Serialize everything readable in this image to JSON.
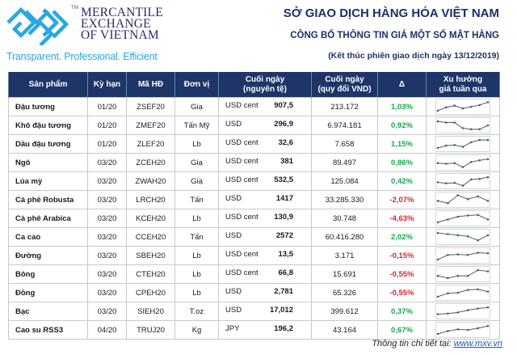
{
  "header": {
    "brand_lines": [
      "MERCANTILE",
      "EXCHANGE",
      "OF VIETNAM"
    ],
    "trademark": "TM",
    "tagline": "Transparent. Professional. Efficient",
    "title": "SỞ GIAO DỊCH HÀNG HÓA VIỆT NAM",
    "subtitle": "CÔNG BỐ THÔNG TIN GIÁ MỘT SỐ MẶT HÀNG",
    "session": "(Kết thúc phiên giao dịch ngày 13/12/2019)"
  },
  "colors": {
    "header_bg": "#1e3567",
    "positive": "#19a64b",
    "negative": "#d9262a",
    "brand_blue": "#2aa7df",
    "sparkline": "#4a5f73"
  },
  "table": {
    "columns": [
      "Sản phẩm",
      "Kỳ hạn",
      "Mã HĐ",
      "Đơn vị",
      "Cuối ngày\n(nguyên tệ)",
      "Cuối ngày\n(quy đổi VND)",
      "Δ",
      "Xu hướng\ngiá tuần qua"
    ],
    "col_lines": {
      "c4a": "Cuối ngày",
      "c4b": "(nguyên tệ)",
      "c5a": "Cuối ngày",
      "c5b": "(quy đổi VND)",
      "c7a": "Xu hướng",
      "c7b": "giá tuần qua"
    },
    "rows": [
      {
        "product": "Đậu tương",
        "term": "01/20",
        "code": "ZSEF20",
        "unit": "Giạ",
        "currency": "USD cent",
        "price": "907,5",
        "vnd": "213.172",
        "change": "1,03%",
        "dir": "pos",
        "trend": [
          0.85,
          0.55,
          0.4,
          0.65,
          0.5,
          0.35,
          0.1
        ]
      },
      {
        "product": "Khô đậu tương",
        "term": "01/20",
        "code": "ZMEF20",
        "unit": "Tấn Mỹ",
        "currency": "USD",
        "price": "296,9",
        "vnd": "6.974.181",
        "change": "0,92%",
        "dir": "pos",
        "trend": [
          0.15,
          0.25,
          0.25,
          0.75,
          0.85,
          0.85,
          0.5
        ]
      },
      {
        "product": "Dầu đậu tương",
        "term": "01/20",
        "code": "ZLEF20",
        "unit": "Lb",
        "currency": "USD cent",
        "price": "32,6",
        "vnd": "7.658",
        "change": "1,15%",
        "dir": "pos",
        "trend": [
          0.85,
          0.65,
          0.6,
          0.75,
          0.35,
          0.15,
          0.15
        ]
      },
      {
        "product": "Ngô",
        "term": "03/20",
        "code": "ZCEH20",
        "unit": "Giạ",
        "currency": "USD cent",
        "price": "381",
        "vnd": "89.497",
        "change": "0,86%",
        "dir": "pos",
        "trend": [
          0.55,
          0.6,
          0.55,
          0.9,
          0.45,
          0.3,
          0.2
        ]
      },
      {
        "product": "Lúa mỳ",
        "term": "03/20",
        "code": "ZWAH20",
        "unit": "Giạ",
        "currency": "USD cent",
        "price": "532,5",
        "vnd": "125.084",
        "change": "0,42%",
        "dir": "pos",
        "trend": [
          0.6,
          0.7,
          0.65,
          0.9,
          0.35,
          0.3,
          0.15
        ]
      },
      {
        "product": "Cà phê Robusta",
        "term": "03/20",
        "code": "LRCH20",
        "unit": "Tấn",
        "currency": "USD",
        "price": "1417",
        "vnd": "33.285.330",
        "change": "-2,07%",
        "dir": "neg",
        "trend": [
          0.6,
          0.8,
          0.1,
          0.45,
          0.2,
          0.6
        ]
      },
      {
        "product": "Cà phê Arabica",
        "term": "03/20",
        "code": "KCEH20",
        "unit": "Lb",
        "currency": "USD cent",
        "price": "130,9",
        "vnd": "30.748",
        "change": "-4,63%",
        "dir": "neg",
        "trend": [
          0.85,
          0.6,
          0.35,
          0.25,
          0.2,
          0.6
        ]
      },
      {
        "product": "Ca cao",
        "term": "03/20",
        "code": "CCEH20",
        "unit": "Tấn",
        "currency": "USD",
        "price": "2572",
        "vnd": "60.416.280",
        "change": "2,02%",
        "dir": "pos",
        "trend": [
          0.15,
          0.25,
          0.35,
          0.45,
          0.8,
          0.35
        ]
      },
      {
        "product": "Đường",
        "term": "03/20",
        "code": "SBEH20",
        "unit": "Lb",
        "currency": "USD cent",
        "price": "13,5",
        "vnd": "3.171",
        "change": "-0,15%",
        "dir": "neg",
        "trend": [
          0.85,
          0.45,
          0.4,
          0.45,
          0.25,
          0.3
        ]
      },
      {
        "product": "Bông",
        "term": "03/20",
        "code": "CTEH20",
        "unit": "Lb",
        "currency": "USD cent",
        "price": "66,8",
        "vnd": "15.691",
        "change": "-0,55%",
        "dir": "neg",
        "trend": [
          0.65,
          0.85,
          0.65,
          0.65,
          0.15,
          0.25
        ]
      },
      {
        "product": "Đồng",
        "term": "03/20",
        "code": "CPEH20",
        "unit": "Lb",
        "currency": "USD",
        "price": "2,781",
        "vnd": "65.326",
        "change": "-0,55%",
        "dir": "neg",
        "trend": [
          0.85,
          0.55,
          0.5,
          0.25,
          0.2,
          0.4
        ]
      },
      {
        "product": "Bạc",
        "term": "03/20",
        "code": "SIEH20",
        "unit": "T.oz",
        "currency": "USD",
        "price": "17,012",
        "vnd": "399.612",
        "change": "0,37%",
        "dir": "pos",
        "trend": [
          0.75,
          0.7,
          0.6,
          0.4,
          0.25,
          0.15
        ]
      },
      {
        "product": "Cao su RSS3",
        "term": "04/20",
        "code": "TRUJ20",
        "unit": "Kg",
        "currency": "JPY",
        "price": "196,2",
        "vnd": "43.164",
        "change": "0,67%",
        "dir": "pos",
        "trend": [
          0.85,
          0.6,
          0.45,
          0.5,
          0.35,
          0.15
        ]
      }
    ]
  },
  "footer": {
    "label": "Thông tin chi tiết tại: ",
    "link_text": "www.mxv.vn"
  }
}
